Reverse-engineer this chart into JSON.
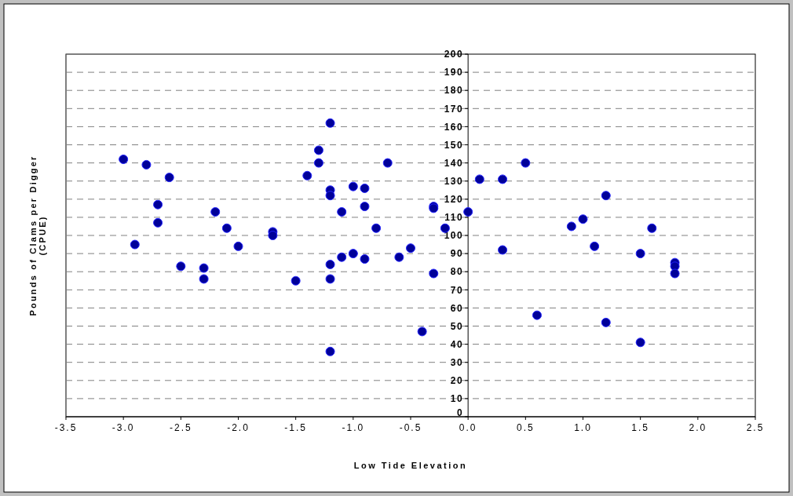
{
  "chart_data": {
    "type": "scatter",
    "xlabel": "Low Tide Elevation",
    "ylabel": "Pounds of Clams per Digger\n(CPUE)",
    "xlim": [
      -3.5,
      2.5
    ],
    "xticks": [
      {
        "value": -3.5,
        "label": "-3.5"
      },
      {
        "value": -3,
        "label": "-3.0"
      },
      {
        "value": -2.5,
        "label": "-2.5"
      },
      {
        "value": -2,
        "label": "-2.0"
      },
      {
        "value": -1.5,
        "label": "-1.5"
      },
      {
        "value": -1,
        "label": "-1.0"
      },
      {
        "value": -0.5,
        "label": "-0.5"
      },
      {
        "value": 0,
        "label": "0.0"
      },
      {
        "value": 0.5,
        "label": "0.5"
      },
      {
        "value": 1,
        "label": "1.0"
      },
      {
        "value": 1.5,
        "label": "1.5"
      },
      {
        "value": 2,
        "label": "2.0"
      },
      {
        "value": 2.5,
        "label": "2.5"
      }
    ],
    "ylim": [
      0,
      200
    ],
    "yticks": [
      0,
      10,
      20,
      30,
      40,
      50,
      60,
      70,
      80,
      90,
      100,
      110,
      120,
      130,
      140,
      150,
      160,
      170,
      180,
      190,
      200
    ],
    "grid": "y",
    "marker": "circle",
    "series": [
      {
        "color": "#000099",
        "x": [
          -3.0,
          -2.9,
          -2.8,
          -2.7,
          -2.7,
          -2.6,
          -2.5,
          -2.3,
          -2.3,
          -2.2,
          -2.1,
          -2.0,
          -1.7,
          -1.7,
          -1.5,
          -1.4,
          -1.3,
          -1.3,
          -1.2,
          -1.2,
          -1.2,
          -1.2,
          -1.2,
          -1.2,
          -1.1,
          -1.1,
          -1.0,
          -1.0,
          -0.9,
          -0.9,
          -0.9,
          -0.8,
          -0.7,
          -0.6,
          -0.5,
          -0.4,
          -0.3,
          -0.3,
          -0.3,
          -0.2,
          0,
          0.1,
          0.3,
          0.3,
          0.5,
          0.6,
          0.9,
          1.0,
          1.1,
          1.2,
          1.2,
          1.5,
          1.5,
          1.6,
          1.8,
          1.8,
          1.8
        ],
        "values": [
          142,
          95,
          139,
          117,
          107,
          132,
          83,
          82,
          76,
          113,
          104,
          94,
          102,
          100,
          75,
          133,
          147,
          140,
          162,
          125,
          122,
          84,
          76,
          36,
          113,
          88,
          127,
          90,
          126,
          116,
          87,
          104,
          140,
          88,
          93,
          47,
          116,
          115,
          79,
          104,
          113,
          131,
          131,
          92,
          140,
          56,
          105,
          109,
          94,
          122,
          52,
          90,
          41,
          104,
          85,
          83,
          79
        ]
      }
    ]
  }
}
